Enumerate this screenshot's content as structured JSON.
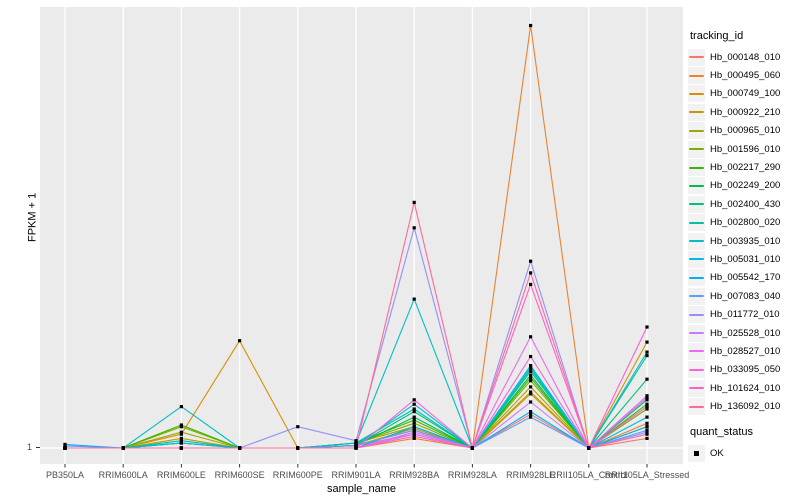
{
  "figure": {
    "y_tick_label": "1",
    "panel_background": "#EBEBEB",
    "gridline_color": "#FFFFFF",
    "axis_text_color": "#4D4D4D",
    "point_color": "#000000"
  },
  "legend": {
    "tracking_title": "tracking_id",
    "quant_title": "quant_status",
    "quant_label": "OK",
    "key_background": "#F2F2F2"
  },
  "chart_data": {
    "type": "line",
    "title": "",
    "xlabel": "sample_name",
    "ylabel": "FPKM + 1",
    "y_axis": {
      "scale": "log10",
      "tick_labels": [
        "1"
      ],
      "baseline_value": 1,
      "approx_max": 3100
    },
    "grid": "vertical category gridlines + baseline, white on grey panel",
    "legend_position": "right",
    "point_marker": "small black square (quant_status OK)",
    "categories": [
      "PB350LA",
      "RRIM600LA",
      "RRIM600LE",
      "RRIM600SE",
      "RRIM600PE",
      "RRIM901LA",
      "RRIM928BA",
      "RRIM928LA",
      "RRIM928LE",
      "RRII105LA_Control",
      "RRII105LA_Stressed"
    ],
    "series": [
      {
        "name": "Hb_000148_010",
        "color": "#F8766D",
        "values": [
          1,
          1,
          1,
          1,
          1,
          1.05,
          1.3,
          1,
          1.9,
          1,
          1.2
        ]
      },
      {
        "name": "Hb_000495_060",
        "color": "#EA8331",
        "values": [
          1,
          1,
          1,
          1,
          1,
          1,
          1.2,
          1,
          3100,
          1,
          1.6
        ]
      },
      {
        "name": "Hb_000749_100",
        "color": "#D89000",
        "values": [
          1,
          1,
          1.3,
          7.7,
          1,
          1.05,
          1.4,
          1,
          2.8,
          1,
          7.5
        ]
      },
      {
        "name": "Hb_000922_210",
        "color": "#C09B00",
        "values": [
          1,
          1,
          1.2,
          1,
          1,
          1.05,
          1.45,
          1,
          2.9,
          1,
          1.5
        ]
      },
      {
        "name": "Hb_000965_010",
        "color": "#A3A500",
        "values": [
          1,
          1,
          1.35,
          1,
          1,
          1.1,
          1.5,
          1,
          3.2,
          1,
          2.2
        ]
      },
      {
        "name": "Hb_001596_010",
        "color": "#7CAE00",
        "values": [
          1,
          1,
          1.5,
          1,
          1,
          1.1,
          1.6,
          1,
          3.6,
          1,
          2.1
        ]
      },
      {
        "name": "Hb_002217_290",
        "color": "#39B600",
        "values": [
          1,
          1,
          1.55,
          1,
          1,
          1.1,
          1.7,
          1,
          3.8,
          1,
          2.3
        ]
      },
      {
        "name": "Hb_002249_200",
        "color": "#00BB4E",
        "values": [
          1,
          1,
          1.1,
          1,
          1,
          1.05,
          1.8,
          1,
          4.0,
          1,
          2.5
        ]
      },
      {
        "name": "Hb_002400_430",
        "color": "#00BF7D",
        "values": [
          1,
          1,
          1.1,
          1,
          1,
          1.05,
          2.0,
          1,
          4.3,
          1,
          3.7
        ]
      },
      {
        "name": "Hb_002800_020",
        "color": "#00C1A3",
        "values": [
          1,
          1,
          1.15,
          1,
          1,
          1.1,
          2.1,
          1,
          4.6,
          1,
          5.8
        ]
      },
      {
        "name": "Hb_003935_010",
        "color": "#00BFC4",
        "values": [
          1,
          1,
          2.2,
          1,
          1,
          1.1,
          17,
          1,
          4.5,
          1,
          6.2
        ]
      },
      {
        "name": "Hb_005031_010",
        "color": "#00BAE0",
        "values": [
          1,
          1,
          1.1,
          1,
          1,
          1.05,
          2.3,
          1,
          4.8,
          1,
          1.8
        ]
      },
      {
        "name": "Hb_005542_170",
        "color": "#00B0F6",
        "values": [
          1.07,
          1,
          1,
          1,
          1,
          1,
          1.5,
          1,
          2.0,
          1,
          1.5
        ]
      },
      {
        "name": "Hb_007083_040",
        "color": "#619CFF",
        "values": [
          1.04,
          1,
          1,
          1,
          1,
          1.05,
          1.4,
          1,
          1.8,
          1,
          1.4
        ]
      },
      {
        "name": "Hb_011772_010",
        "color": "#9590FF",
        "values": [
          1,
          1,
          1,
          1,
          1.5,
          1.15,
          66,
          1,
          35,
          1,
          1.35
        ]
      },
      {
        "name": "Hb_025528_010",
        "color": "#C77CFF",
        "values": [
          1,
          1,
          1,
          1,
          1,
          1,
          1.3,
          1,
          2.4,
          1,
          2.6
        ]
      },
      {
        "name": "Hb_028527_010",
        "color": "#E76BF3",
        "values": [
          1,
          1,
          1,
          1,
          1,
          1,
          1.35,
          1,
          8.3,
          1,
          2.7
        ]
      },
      {
        "name": "Hb_033095_050",
        "color": "#FA62DB",
        "values": [
          1,
          1,
          1,
          1,
          1,
          1,
          2.5,
          1,
          5.7,
          1,
          2.2
        ]
      },
      {
        "name": "Hb_101624_010",
        "color": "#FF61C9",
        "values": [
          1,
          1,
          1,
          1,
          1,
          1,
          1.25,
          1,
          22.5,
          1,
          10
        ]
      },
      {
        "name": "Hb_136092_010",
        "color": "#FF6A98",
        "values": [
          1,
          1,
          1,
          1,
          1,
          1,
          107,
          1,
          28,
          1,
          1.3
        ]
      }
    ]
  }
}
